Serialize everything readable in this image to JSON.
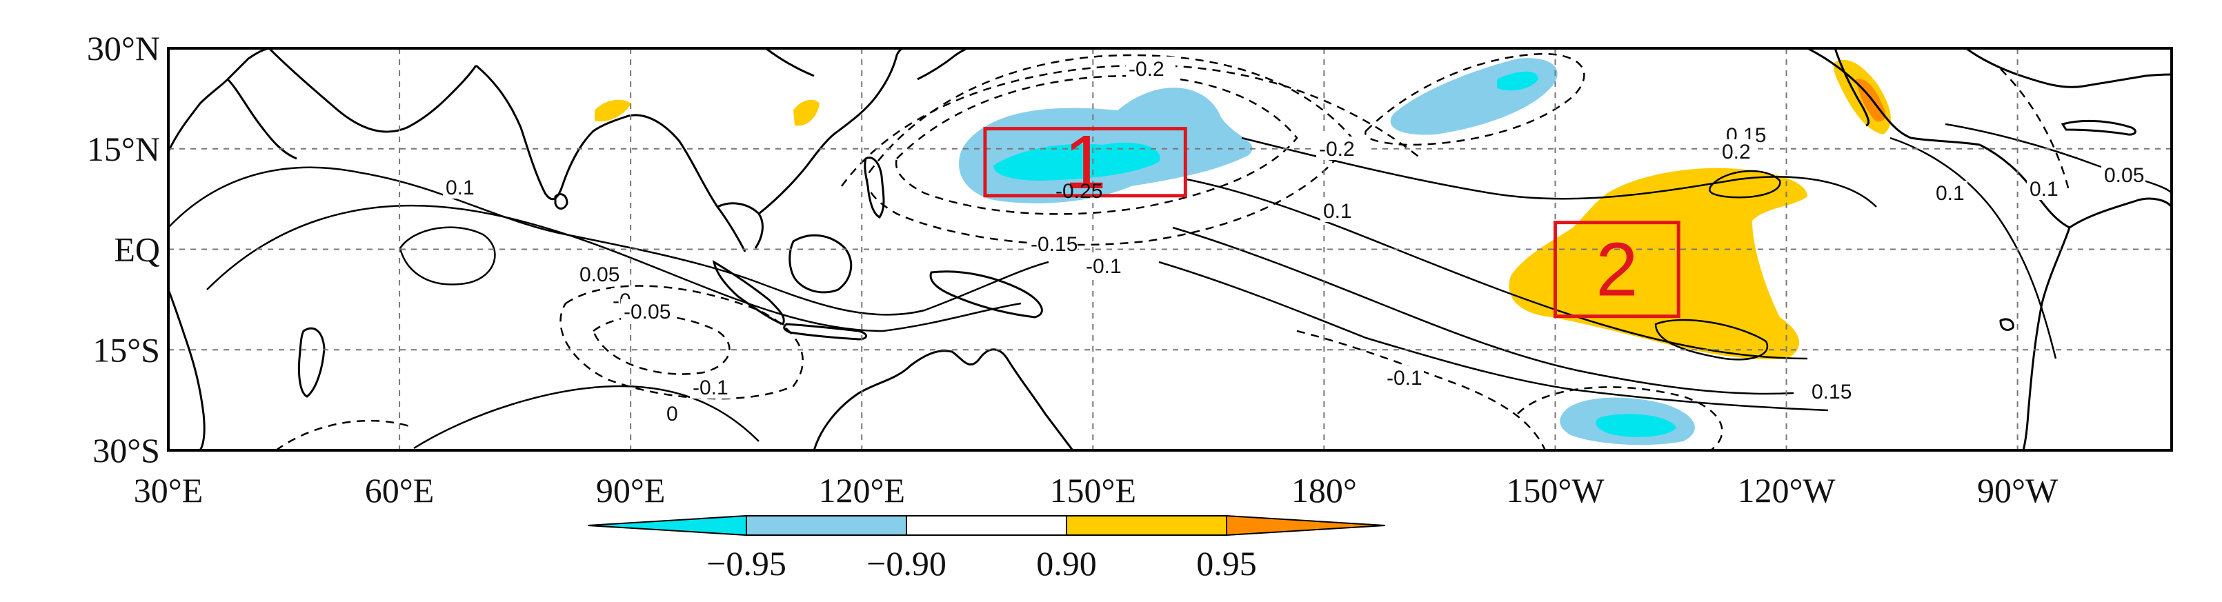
{
  "colors": {
    "strong_negative": "#00e5ee",
    "negative": "#87ceeb",
    "neutral": "#ffffff",
    "positive": "#ffcc00",
    "strong_positive": "#ff8c00",
    "box": "#e0161f",
    "coast": "#000000",
    "grid": "#777777"
  },
  "map": {
    "lat_ticks": [
      {
        "lat": 30,
        "label": "30°N"
      },
      {
        "lat": 15,
        "label": "15°N"
      },
      {
        "lat": 0,
        "label": "EQ"
      },
      {
        "lat": -15,
        "label": "15°S"
      },
      {
        "lat": -30,
        "label": "30°S"
      }
    ],
    "lon_ticks": [
      {
        "lon": 30,
        "label": "30°E"
      },
      {
        "lon": 60,
        "label": "60°E"
      },
      {
        "lon": 90,
        "label": "90°E"
      },
      {
        "lon": 120,
        "label": "120°E"
      },
      {
        "lon": 150,
        "label": "150°E"
      },
      {
        "lon": 180,
        "label": "180°"
      },
      {
        "lon": 210,
        "label": "150°W"
      },
      {
        "lon": 240,
        "label": "120°W"
      },
      {
        "lon": 270,
        "label": "90°W"
      }
    ],
    "lon_range": [
      30,
      290
    ],
    "lat_range": [
      -30,
      30
    ],
    "grid": true,
    "regions": [
      {
        "label": "1",
        "lon_min": 136,
        "lon_max": 162,
        "lat_min": 8,
        "lat_max": 18
      },
      {
        "label": "2",
        "lon_min": 210,
        "lon_max": 226,
        "lat_min": -10,
        "lat_max": 4
      }
    ],
    "contour_labels": [
      "-0.2",
      "-0.2",
      "-0.25",
      "0.15",
      "0.2",
      "0.1",
      "0.1",
      "0.1",
      "0.05",
      "0.1",
      "-0.15",
      "-0.1",
      "0.05",
      "-0",
      "-0.05",
      "-0.1",
      "0",
      "-0.1",
      "0.15"
    ]
  },
  "colorbar": {
    "labels": [
      "−0.95",
      "−0.90",
      "0.90",
      "0.95"
    ]
  }
}
